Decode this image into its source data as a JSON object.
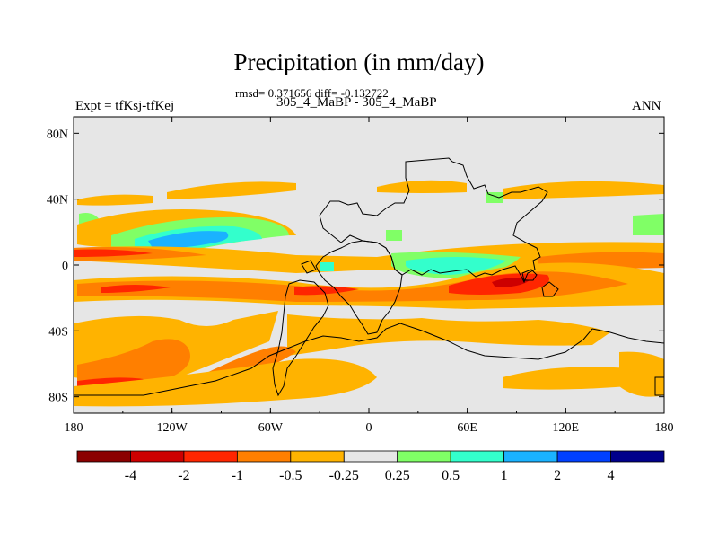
{
  "title": "Precipitation (in mm/day)",
  "stats": "rmsd= 0.371656 diff= -0.132722",
  "left_label": "Expt = tfKsj-tfKej",
  "center_label": "305_4_MaBP - 305_4_MaBP",
  "right_label": "ANN",
  "colors": {
    "land_fill": "#e6e6e6",
    "coastline": "#000000",
    "neg4": "#8b0000",
    "neg2": "#cd0000",
    "neg1": "#ff2600",
    "neg05": "#ff7f00",
    "neg025": "#ffb300",
    "neutral": "#e6e6e6",
    "pos025": "#80ff66",
    "pos05": "#33ffcc",
    "pos1": "#1ab2ff",
    "pos2": "#0040ff",
    "pos4": "#00008b"
  },
  "chart_data": {
    "type": "heatmap",
    "projection": "cylindrical equidistant",
    "xlim": [
      -180,
      180
    ],
    "ylim": [
      -90,
      90
    ],
    "x_ticks": [
      {
        "value": -180,
        "label": "180"
      },
      {
        "value": -120,
        "label": "120W"
      },
      {
        "value": -60,
        "label": "60W"
      },
      {
        "value": 0,
        "label": "0"
      },
      {
        "value": 60,
        "label": "60E"
      },
      {
        "value": 120,
        "label": "120E"
      },
      {
        "value": 180,
        "label": "180"
      }
    ],
    "y_ticks": [
      {
        "value": 80,
        "label": "80N"
      },
      {
        "value": 40,
        "label": "40N"
      },
      {
        "value": 0,
        "label": "0"
      },
      {
        "value": -40,
        "label": "40S"
      },
      {
        "value": -80,
        "label": "80S"
      }
    ],
    "colorbar": {
      "levels": [
        -4,
        -2,
        -1,
        -0.5,
        -0.25,
        0.25,
        0.5,
        1,
        2,
        4
      ],
      "labels": [
        "-4",
        "-2",
        "-1",
        "-0.5",
        "-0.25",
        "0.25",
        "0.5",
        "1",
        "2",
        "4"
      ],
      "colors": [
        "#8b0000",
        "#cd0000",
        "#ff2600",
        "#ff7f00",
        "#ffb300",
        "#e6e6e6",
        "#80ff66",
        "#33ffcc",
        "#1ab2ff",
        "#0040ff",
        "#00008b"
      ]
    },
    "anomaly_regions": [
      {
        "name": "north-tropical-orange-band",
        "band": "-0.5",
        "lon": [
          -180,
          180
        ],
        "lat": [
          2,
          10
        ]
      },
      {
        "name": "north-tropical-red-band",
        "band": "-1",
        "lon": [
          -180,
          -108
        ],
        "lat": [
          3,
          8
        ]
      },
      {
        "name": "south-tropical-orange-band",
        "band": "-0.5",
        "lon": [
          -180,
          180
        ],
        "lat": [
          -18,
          -6
        ]
      },
      {
        "name": "indian-ocean-red-core",
        "band": "-1",
        "lon": [
          58,
          110
        ],
        "lat": [
          -14,
          -2
        ]
      },
      {
        "name": "north-pacific-positive-band",
        "band": "0.5",
        "lon": [
          -145,
          -90
        ],
        "lat": [
          5,
          22
        ]
      },
      {
        "name": "north-pacific-blue-core",
        "band": "1",
        "lon": [
          -135,
          -95
        ],
        "lat": [
          10,
          18
        ]
      },
      {
        "name": "africa-positive-band",
        "band": "0.5",
        "lon": [
          15,
          72
        ],
        "lat": [
          -6,
          2
        ]
      },
      {
        "name": "southern-pacific-red-band",
        "band": "-1",
        "lon": [
          -180,
          -120
        ],
        "lat": [
          -83,
          -70
        ]
      },
      {
        "name": "southern-pacific-orange-field",
        "band": "-0.5",
        "lon": [
          -180,
          -80
        ],
        "lat": [
          -85,
          -40
        ]
      },
      {
        "name": "northern-midlat-orange-band",
        "band": "-0.25",
        "lon": [
          -180,
          180
        ],
        "lat": [
          30,
          42
        ]
      }
    ]
  }
}
